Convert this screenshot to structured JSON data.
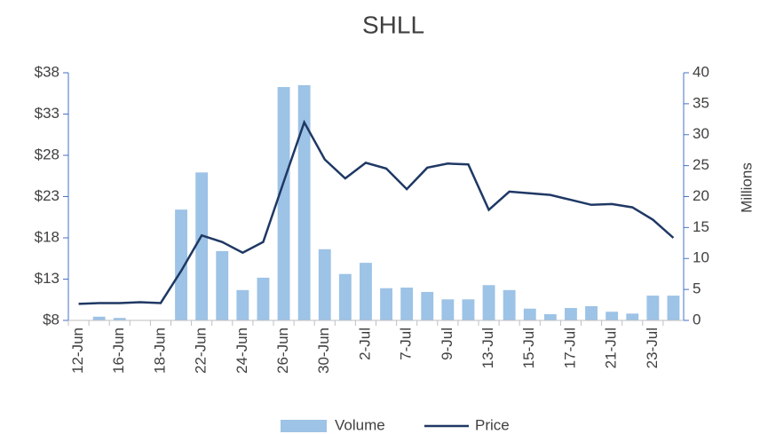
{
  "chart_data": {
    "type": "bar_line",
    "title": "SHLL",
    "categories": [
      "12-Jun",
      null,
      "16-Jun",
      null,
      "18-Jun",
      null,
      "22-Jun",
      null,
      "24-Jun",
      null,
      "26-Jun",
      null,
      "30-Jun",
      null,
      "2-Jul",
      null,
      "7-Jul",
      null,
      "9-Jul",
      null,
      "13-Jul",
      null,
      "15-Jul",
      null,
      "17-Jul",
      null,
      "21-Jul",
      null,
      "23-Jul",
      null
    ],
    "series": [
      {
        "name": "Volume",
        "type": "bar",
        "axis": "y2",
        "color": "#9dc3e6",
        "values": [
          0,
          0.6,
          0.4,
          0,
          0,
          17.9,
          23.9,
          11.2,
          4.9,
          6.9,
          37.7,
          38.0,
          11.5,
          7.5,
          9.3,
          5.2,
          5.3,
          4.6,
          3.4,
          3.4,
          5.7,
          4.9,
          1.9,
          1.0,
          2.0,
          2.3,
          1.4,
          1.1,
          4.0,
          4.0
        ]
      },
      {
        "name": "Price",
        "type": "line",
        "axis": "y",
        "color": "#1f3864",
        "values": [
          10.0,
          10.1,
          10.1,
          10.2,
          10.1,
          14.0,
          18.3,
          17.5,
          16.2,
          17.5,
          24.8,
          32.0,
          27.5,
          25.2,
          27.1,
          26.4,
          23.9,
          26.5,
          27.0,
          26.9,
          21.4,
          23.6,
          23.4,
          23.2,
          22.6,
          22.0,
          22.1,
          21.7,
          20.2,
          18.0
        ]
      }
    ],
    "ylim": [
      8,
      38
    ],
    "yticks": [
      {
        "value": 8,
        "label": "$8"
      },
      {
        "value": 13,
        "label": "$13"
      },
      {
        "value": 18,
        "label": "$18"
      },
      {
        "value": 23,
        "label": "$23"
      },
      {
        "value": 28,
        "label": "$28"
      },
      {
        "value": 33,
        "label": "$33"
      },
      {
        "value": 38,
        "label": "$38"
      }
    ],
    "y2lim": [
      0,
      40
    ],
    "y2ticks": [
      0,
      5,
      10,
      15,
      20,
      25,
      30,
      35,
      40
    ],
    "y2label": "Millions",
    "legend": "bottom"
  }
}
